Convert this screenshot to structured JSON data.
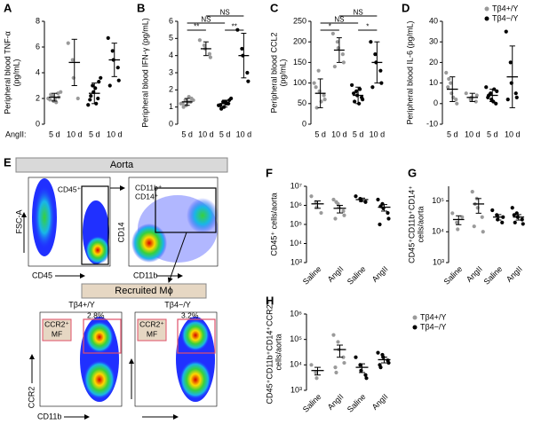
{
  "chart_data": [
    {
      "type": "dotplot",
      "panel": "A",
      "ylabel": [
        "Peripheral blood TNF-α",
        "(pg/mL)"
      ],
      "xlabel": "AngII:",
      "categories": [
        "5 d",
        "10 d",
        "5 d",
        "10 d"
      ],
      "ylim": [
        0,
        8
      ],
      "yticks": [
        0,
        2,
        4,
        6,
        8
      ],
      "groups": [
        {
          "color": "#9a9a9a",
          "points": [
            2.0,
            2.2,
            1.8,
            2.4,
            2.1,
            1.9,
            2.3,
            2.0,
            1.7,
            2.5
          ],
          "mean": 2.1,
          "error": 0.3
        },
        {
          "color": "#9a9a9a",
          "points": [
            6.3,
            5.0,
            3.6,
            2.0
          ],
          "mean": 4.8,
          "error": 1.8
        },
        {
          "color": "#000000",
          "points": [
            1.5,
            3.0,
            2.5,
            2.0,
            3.3,
            1.9,
            2.2,
            2.8,
            1.6,
            3.6
          ],
          "mean": 2.4,
          "error": 0.8
        },
        {
          "color": "#000000",
          "points": [
            6.7,
            5.7,
            5.0,
            4.4,
            3.4,
            3.0
          ],
          "mean": 5.0,
          "error": 1.3
        }
      ]
    },
    {
      "type": "dotplot",
      "panel": "B",
      "ylabel": [
        "Peripheral blood IFN-γ (pg/mL)"
      ],
      "categories": [
        "5 d",
        "10 d",
        "5 d",
        "10 d"
      ],
      "ylim": [
        0,
        6
      ],
      "yticks": [
        0,
        1,
        2,
        3,
        4,
        5,
        6
      ],
      "groups": [
        {
          "color": "#9a9a9a",
          "points": [
            1.2,
            1.4,
            1.1,
            1.3,
            1.5,
            1.2,
            1.0,
            1.3,
            1.6,
            1.4
          ],
          "mean": 1.3,
          "error": 0.2
        },
        {
          "color": "#9a9a9a",
          "points": [
            4.9,
            4.6,
            4.4,
            4.1,
            3.9
          ],
          "mean": 4.4,
          "error": 0.4
        },
        {
          "color": "#000000",
          "points": [
            1.1,
            1.3,
            1.0,
            1.2,
            1.4,
            1.1,
            0.9,
            1.3,
            1.2,
            1.5
          ],
          "mean": 1.2,
          "error": 0.2
        },
        {
          "color": "#000000",
          "points": [
            5.5,
            4.4,
            4.0,
            3.0,
            2.5
          ],
          "mean": 4.0,
          "error": 1.3
        }
      ],
      "brackets": [
        {
          "text": "**",
          "between": [
            0,
            1
          ]
        },
        {
          "text": "**",
          "between": [
            2,
            3
          ]
        },
        {
          "text": "NS",
          "between": [
            0,
            2
          ]
        },
        {
          "text": "NS",
          "between": [
            1,
            3
          ]
        }
      ]
    },
    {
      "type": "dotplot",
      "panel": "C",
      "ylabel": [
        "Peripheral blood CCL2",
        "(pg/mL)"
      ],
      "categories": [
        "5 d",
        "10 d",
        "5 d",
        "10 d"
      ],
      "ylim": [
        0,
        250
      ],
      "yticks": [
        0,
        50,
        100,
        150,
        200,
        250
      ],
      "groups": [
        {
          "color": "#9a9a9a",
          "points": [
            100,
            130,
            80,
            70,
            60,
            90,
            40,
            55
          ],
          "mean": 75,
          "error": 35
        },
        {
          "color": "#9a9a9a",
          "points": [
            220,
            200,
            185,
            170,
            150,
            140
          ],
          "mean": 180,
          "error": 30
        },
        {
          "color": "#000000",
          "points": [
            95,
            80,
            70,
            65,
            60,
            75,
            55,
            50,
            85
          ],
          "mean": 70,
          "error": 20
        },
        {
          "color": "#000000",
          "points": [
            200,
            170,
            150,
            130,
            100,
            90
          ],
          "mean": 150,
          "error": 50
        }
      ],
      "brackets": [
        {
          "text": "*",
          "between": [
            0,
            1
          ]
        },
        {
          "text": "*",
          "between": [
            2,
            3
          ]
        },
        {
          "text": "NS",
          "between": [
            0,
            2
          ]
        },
        {
          "text": "NS",
          "between": [
            1,
            3
          ]
        }
      ]
    },
    {
      "type": "dotplot",
      "panel": "D",
      "ylabel": [
        "Peripheral blood IL-6 (pg/mL)"
      ],
      "categories": [
        "5 d",
        "10 d",
        "5 d",
        "10 d"
      ],
      "ylim": [
        -10,
        40
      ],
      "yticks": [
        -10,
        0,
        10,
        20,
        30,
        40
      ],
      "legend_loc": "top-right",
      "legend": [
        {
          "name": "Tβ4+/Y",
          "color": "#9a9a9a"
        },
        {
          "name": "Tβ4−/Y",
          "color": "#000000"
        }
      ],
      "groups": [
        {
          "color": "#9a9a9a",
          "points": [
            15,
            10,
            5,
            2,
            0,
            8,
            12,
            3
          ],
          "mean": 7,
          "error": 6
        },
        {
          "color": "#9a9a9a",
          "points": [
            5,
            2,
            3,
            1,
            4
          ],
          "mean": 3,
          "error": 2
        },
        {
          "color": "#000000",
          "points": [
            8,
            5,
            2,
            0,
            6,
            3,
            4,
            1,
            7
          ],
          "mean": 4,
          "error": 3
        },
        {
          "color": "#000000",
          "points": [
            35,
            20,
            10,
            5,
            3,
            2
          ],
          "mean": 13,
          "error": 15
        }
      ]
    },
    {
      "type": "dotplot",
      "panel": "F",
      "log": true,
      "ylabel": [
        "CD45⁺ cells/aorta"
      ],
      "categories": [
        "Saline",
        "AngII",
        "Saline",
        "AngII"
      ],
      "ylim": [
        1000,
        10000000
      ],
      "yticks": [
        {
          "value": 1000,
          "label": "10³"
        },
        {
          "value": 10000,
          "label": "10⁴"
        },
        {
          "value": 100000,
          "label": "10⁵"
        },
        {
          "value": 1000000,
          "label": "10⁶"
        },
        {
          "value": 10000000,
          "label": "10⁷"
        }
      ],
      "groups": [
        {
          "color": "#9a9a9a",
          "points": [
            3000000,
            1500000,
            800000,
            400000
          ],
          "mean": 1200000,
          "error": 500000
        },
        {
          "color": "#9a9a9a",
          "points": [
            2000000,
            1200000,
            800000,
            500000,
            300000,
            200000,
            1500000
          ],
          "mean": 700000,
          "error": 300000
        },
        {
          "color": "#000000",
          "points": [
            3000000,
            2200000,
            1800000,
            1500000
          ],
          "mean": 2000000,
          "error": 400000
        },
        {
          "color": "#000000",
          "points": [
            2000000,
            1200000,
            700000,
            400000,
            200000,
            100000,
            900000
          ],
          "mean": 800000,
          "error": 300000
        }
      ]
    },
    {
      "type": "dotplot",
      "panel": "G",
      "log": true,
      "ylabel": [
        "CD45⁺CD11b⁺CD14⁺",
        "cells/aorta"
      ],
      "categories": [
        "Saline",
        "AngII",
        "Saline",
        "AngII"
      ],
      "ylim": [
        1000,
        300000
      ],
      "yticks": [
        {
          "value": 1000,
          "label": "10³"
        },
        {
          "value": 10000,
          "label": "10⁴"
        },
        {
          "value": 100000,
          "label": "10⁵"
        }
      ],
      "groups": [
        {
          "color": "#9a9a9a",
          "points": [
            40000,
            20000,
            12000,
            30000
          ],
          "mean": 25000,
          "error": 8000
        },
        {
          "color": "#9a9a9a",
          "points": [
            200000,
            120000,
            60000,
            30000,
            10000,
            15000,
            80000
          ],
          "mean": 80000,
          "error": 40000
        },
        {
          "color": "#000000",
          "points": [
            50000,
            35000,
            25000,
            20000,
            30000
          ],
          "mean": 30000,
          "error": 6000
        },
        {
          "color": "#000000",
          "points": [
            60000,
            40000,
            30000,
            25000,
            18000,
            35000,
            20000
          ],
          "mean": 30000,
          "error": 6000
        }
      ]
    },
    {
      "type": "dotplot",
      "panel": "H",
      "log": true,
      "ylabel": [
        "CD45⁺CD11b⁺CD14⁺CCR2⁺",
        "cells/aorta"
      ],
      "categories": [
        "Saline",
        "AngII",
        "Saline",
        "AngII"
      ],
      "ylim": [
        1000,
        1000000
      ],
      "yticks": [
        {
          "value": 1000,
          "label": "10³"
        },
        {
          "value": 10000,
          "label": "10⁴"
        },
        {
          "value": 100000,
          "label": "10⁵"
        },
        {
          "value": 1000000,
          "label": "10⁶"
        }
      ],
      "legend_loc": "right",
      "legend": [
        {
          "name": "Tβ4+/Y",
          "color": "#9a9a9a"
        },
        {
          "name": "Tβ4−/Y",
          "color": "#000000"
        }
      ],
      "groups": [
        {
          "color": "#9a9a9a",
          "points": [
            10000,
            5000,
            3000
          ],
          "mean": 6000,
          "error": 2000
        },
        {
          "color": "#9a9a9a",
          "points": [
            150000,
            80000,
            40000,
            20000,
            12000,
            8000,
            5000
          ],
          "mean": 40000,
          "error": 20000
        },
        {
          "color": "#000000",
          "points": [
            20000,
            10000,
            6000,
            4000,
            3000
          ],
          "mean": 8000,
          "error": 3000
        },
        {
          "color": "#000000",
          "points": [
            30000,
            25000,
            20000,
            15000,
            12000,
            10000,
            8000
          ],
          "mean": 16000,
          "error": 4000
        }
      ]
    }
  ],
  "flow": {
    "panel": "E",
    "banner": "Aorta",
    "banner2": "Recruited Mϕ",
    "plot1": {
      "gate": "CD45⁺",
      "x": "CD45",
      "y": "FSC-A"
    },
    "plot2": {
      "gate": [
        "CD11b⁺",
        "CD14⁺"
      ],
      "x": "CD11b",
      "y": "CD14"
    },
    "plot3": {
      "title": "Tβ4+/Y",
      "pct": "2.8%",
      "gate": [
        "CCR2⁺",
        "MF"
      ],
      "x": "CD11b",
      "y": "CCR2"
    },
    "plot4": {
      "title": "Tβ4−/Y",
      "pct": "3.2%",
      "gate": [
        "CCR2⁺",
        "MF"
      ]
    }
  }
}
